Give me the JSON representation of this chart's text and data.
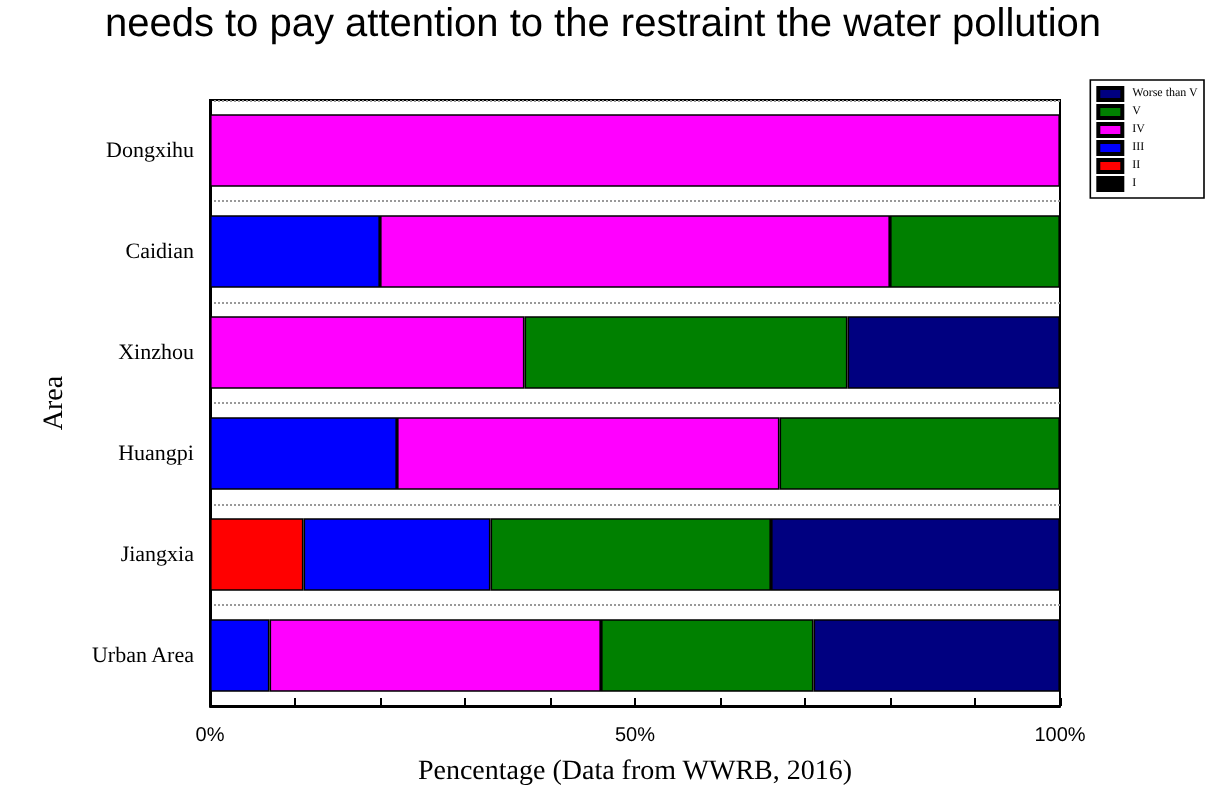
{
  "chart_data": {
    "type": "bar",
    "orientation": "horizontal",
    "stacked": true,
    "annotations": [
      "needs to pay attention to the restraint the water pollution"
    ],
    "xlabel": "Pencentage (Data from WWRB, 2016)",
    "ylabel": "Area",
    "categories": [
      "Dongxihu",
      "Caidian",
      "Xinzhou",
      "Huangpi",
      "Jiangxia",
      "Urban Area"
    ],
    "series": [
      {
        "name": "I",
        "color": "#000000",
        "values": [
          0,
          0,
          0,
          0,
          0,
          0
        ]
      },
      {
        "name": "II",
        "color": "#ff0000",
        "values": [
          0,
          0,
          0,
          0,
          11,
          0
        ]
      },
      {
        "name": "III",
        "color": "#0000ff",
        "values": [
          0,
          20,
          0,
          22,
          22,
          7
        ]
      },
      {
        "name": "IV",
        "color": "#ff00ff",
        "values": [
          100,
          60,
          37,
          45,
          0,
          39
        ]
      },
      {
        "name": "V",
        "color": "#008000",
        "values": [
          0,
          20,
          38,
          33,
          33,
          25
        ]
      },
      {
        "name": "Worse than V",
        "color": "#000080",
        "values": [
          0,
          0,
          25,
          0,
          34,
          29
        ]
      }
    ],
    "xlim": [
      0,
      100
    ],
    "xticks": [
      {
        "value": 0,
        "label": "0%"
      },
      {
        "value": 10,
        "label": null
      },
      {
        "value": 20,
        "label": null
      },
      {
        "value": 30,
        "label": null
      },
      {
        "value": 40,
        "label": null
      },
      {
        "value": 50,
        "label": "50%"
      },
      {
        "value": 60,
        "label": null
      },
      {
        "value": 70,
        "label": null
      },
      {
        "value": 80,
        "label": null
      },
      {
        "value": 90,
        "label": null
      },
      {
        "value": 100,
        "label": "100%"
      }
    ],
    "grid": "y",
    "legend": "top right"
  }
}
